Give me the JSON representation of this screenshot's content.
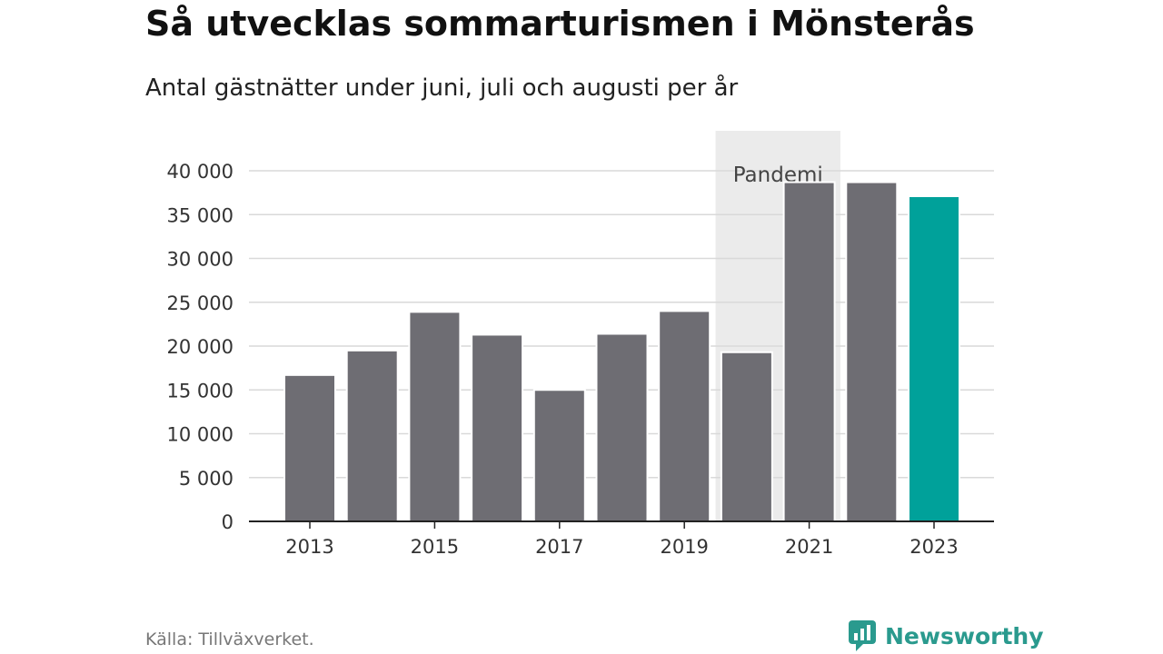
{
  "header": {
    "title": "Så utvecklas sommarturismen i Mönsterås",
    "subtitle": "Antal gästnätter under juni, juli och augusti per år"
  },
  "footer": {
    "source": "Källa: Tillväxverket.",
    "brand": "Newsworthy"
  },
  "colors": {
    "bar": "#6e6d73",
    "highlight": "#00a19a",
    "band": "#ebebeb",
    "grid": "#d9d9d9",
    "brand": "#2a9a8e"
  },
  "chart_data": {
    "type": "bar",
    "title": "Så utvecklas sommarturismen i Mönsterås",
    "subtitle": "Antal gästnätter under juni, juli och augusti per år",
    "xlabel": "",
    "ylabel": "",
    "categories": [
      "2013",
      "2014",
      "2015",
      "2016",
      "2017",
      "2018",
      "2019",
      "2020",
      "2021",
      "2022",
      "2023"
    ],
    "values": [
      16700,
      19500,
      23900,
      21300,
      15000,
      21400,
      24000,
      19300,
      38700,
      38700,
      37100
    ],
    "highlight_category": "2023",
    "x_tick_labels": [
      "2013",
      "2015",
      "2017",
      "2019",
      "2021",
      "2023"
    ],
    "y_tick_values": [
      0,
      5000,
      10000,
      15000,
      20000,
      25000,
      30000,
      35000,
      40000
    ],
    "y_tick_labels": [
      "0",
      "5 000",
      "10 000",
      "15 000",
      "20 000",
      "25 000",
      "30 000",
      "35 000",
      "40 000"
    ],
    "ylim": [
      0,
      40000
    ],
    "grid": true,
    "legend": "none",
    "annotation": {
      "label": "Pandemi",
      "from": "2020",
      "to": "2021"
    }
  }
}
